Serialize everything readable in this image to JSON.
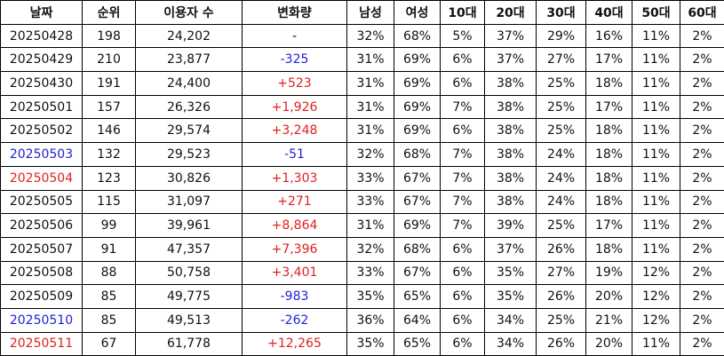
{
  "headers": [
    "날짜",
    "순위",
    "이용자 수",
    "변화량",
    "남성",
    "여성",
    "10대",
    "20대",
    "30대",
    "40대",
    "50대",
    "60대"
  ],
  "rows": [
    {
      "date": "20250428",
      "date_color": "black",
      "rank": "198",
      "users": "24,202",
      "change": "-",
      "change_color": "black",
      "male": "32%",
      "female": "68%",
      "a10": "5%",
      "a20": "37%",
      "a30": "29%",
      "a40": "16%",
      "a50": "11%",
      "a60": "2%"
    },
    {
      "date": "20250429",
      "date_color": "black",
      "rank": "210",
      "users": "23,877",
      "change": "-325",
      "change_color": "blue",
      "male": "31%",
      "female": "69%",
      "a10": "6%",
      "a20": "37%",
      "a30": "27%",
      "a40": "17%",
      "a50": "11%",
      "a60": "2%"
    },
    {
      "date": "20250430",
      "date_color": "black",
      "rank": "191",
      "users": "24,400",
      "change": "+523",
      "change_color": "red",
      "male": "31%",
      "female": "69%",
      "a10": "6%",
      "a20": "38%",
      "a30": "25%",
      "a40": "18%",
      "a50": "11%",
      "a60": "2%"
    },
    {
      "date": "20250501",
      "date_color": "black",
      "rank": "157",
      "users": "26,326",
      "change": "+1,926",
      "change_color": "red",
      "male": "31%",
      "female": "69%",
      "a10": "7%",
      "a20": "38%",
      "a30": "25%",
      "a40": "17%",
      "a50": "11%",
      "a60": "2%"
    },
    {
      "date": "20250502",
      "date_color": "black",
      "rank": "146",
      "users": "29,574",
      "change": "+3,248",
      "change_color": "red",
      "male": "31%",
      "female": "69%",
      "a10": "6%",
      "a20": "38%",
      "a30": "25%",
      "a40": "18%",
      "a50": "11%",
      "a60": "2%"
    },
    {
      "date": "20250503",
      "date_color": "blue",
      "rank": "132",
      "users": "29,523",
      "change": "-51",
      "change_color": "blue",
      "male": "32%",
      "female": "68%",
      "a10": "7%",
      "a20": "38%",
      "a30": "24%",
      "a40": "18%",
      "a50": "11%",
      "a60": "2%"
    },
    {
      "date": "20250504",
      "date_color": "red",
      "rank": "123",
      "users": "30,826",
      "change": "+1,303",
      "change_color": "red",
      "male": "33%",
      "female": "67%",
      "a10": "7%",
      "a20": "38%",
      "a30": "24%",
      "a40": "18%",
      "a50": "11%",
      "a60": "2%"
    },
    {
      "date": "20250505",
      "date_color": "black",
      "rank": "115",
      "users": "31,097",
      "change": "+271",
      "change_color": "red",
      "male": "33%",
      "female": "67%",
      "a10": "7%",
      "a20": "38%",
      "a30": "24%",
      "a40": "18%",
      "a50": "11%",
      "a60": "2%"
    },
    {
      "date": "20250506",
      "date_color": "black",
      "rank": "99",
      "users": "39,961",
      "change": "+8,864",
      "change_color": "red",
      "male": "31%",
      "female": "69%",
      "a10": "7%",
      "a20": "39%",
      "a30": "25%",
      "a40": "17%",
      "a50": "11%",
      "a60": "2%"
    },
    {
      "date": "20250507",
      "date_color": "black",
      "rank": "91",
      "users": "47,357",
      "change": "+7,396",
      "change_color": "red",
      "male": "32%",
      "female": "68%",
      "a10": "6%",
      "a20": "37%",
      "a30": "26%",
      "a40": "18%",
      "a50": "11%",
      "a60": "2%"
    },
    {
      "date": "20250508",
      "date_color": "black",
      "rank": "88",
      "users": "50,758",
      "change": "+3,401",
      "change_color": "red",
      "male": "33%",
      "female": "67%",
      "a10": "6%",
      "a20": "35%",
      "a30": "27%",
      "a40": "19%",
      "a50": "12%",
      "a60": "2%"
    },
    {
      "date": "20250509",
      "date_color": "black",
      "rank": "85",
      "users": "49,775",
      "change": "-983",
      "change_color": "blue",
      "male": "35%",
      "female": "65%",
      "a10": "6%",
      "a20": "35%",
      "a30": "26%",
      "a40": "20%",
      "a50": "12%",
      "a60": "2%"
    },
    {
      "date": "20250510",
      "date_color": "blue",
      "rank": "85",
      "users": "49,513",
      "change": "-262",
      "change_color": "blue",
      "male": "36%",
      "female": "64%",
      "a10": "6%",
      "a20": "34%",
      "a30": "25%",
      "a40": "21%",
      "a50": "12%",
      "a60": "2%"
    },
    {
      "date": "20250511",
      "date_color": "red",
      "rank": "67",
      "users": "61,778",
      "change": "+12,265",
      "change_color": "red",
      "male": "35%",
      "female": "65%",
      "a10": "6%",
      "a20": "34%",
      "a30": "26%",
      "a40": "20%",
      "a50": "11%",
      "a60": "2%"
    }
  ]
}
